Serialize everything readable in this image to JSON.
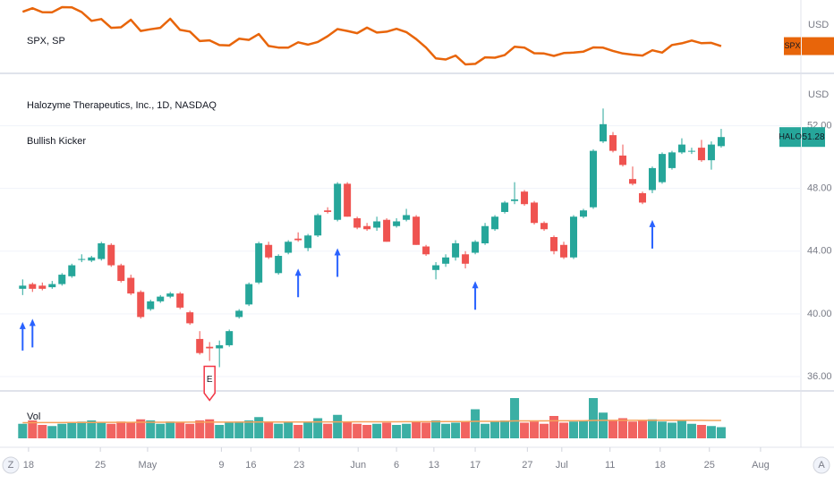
{
  "controls": {
    "left": "Z",
    "right": "A"
  },
  "chart_data": [
    {
      "type": "line",
      "title": "SPX, SP",
      "ticker": "SPX",
      "currency": "USD",
      "color": "#e8650a",
      "xlim": [
        -2.3,
        79.1
      ],
      "ylim": [
        3568,
        4561
      ],
      "values": [
        4397,
        4447,
        4392,
        4391,
        4462,
        4459,
        4394,
        4272,
        4296,
        4175,
        4183,
        4287,
        4132,
        4155,
        4175,
        4300,
        4147,
        4123,
        3991,
        4001,
        3935,
        3930,
        4023,
        4008,
        4088,
        3923,
        3901,
        3901,
        3974,
        3941,
        3979,
        4058,
        4158,
        4132,
        4101,
        4177,
        4109,
        4121,
        4161,
        4116,
        4018,
        3901,
        3750,
        3735,
        3790,
        3667,
        3675,
        3765,
        3760,
        3796,
        3912,
        3901,
        3822,
        3819,
        3785,
        3825,
        3831,
        3845,
        3903,
        3899,
        3855,
        3819,
        3802,
        3790,
        3863,
        3831,
        3937,
        3960,
        3999,
        3962,
        3967,
        3921
      ]
    },
    {
      "type": "candlestick",
      "title": "Halozyme Therapeutics, Inc., 1D, NASDAQ",
      "indicator": "Bullish Kicker",
      "ticker": "HALO",
      "currency": "USD",
      "up_color": "#26a69a",
      "down_color": "#ef5350",
      "grid": true,
      "xlim": [
        -2.3,
        79.1
      ],
      "ylim": [
        35.2,
        55
      ],
      "yticks": [
        {
          "value": 36,
          "label": "36.00"
        },
        {
          "value": 40,
          "label": "40.00"
        },
        {
          "value": 44,
          "label": "44.00"
        },
        {
          "value": 48,
          "label": "48.00"
        },
        {
          "value": 52,
          "label": "52.00"
        }
      ],
      "xticks": [
        {
          "value": 0.6,
          "label": "18"
        },
        {
          "value": 7.9,
          "label": "25"
        },
        {
          "value": 12.7,
          "label": "May"
        },
        {
          "value": 20.2,
          "label": "9"
        },
        {
          "value": 23.2,
          "label": "16"
        },
        {
          "value": 28.1,
          "label": "23"
        },
        {
          "value": 34.1,
          "label": "Jun"
        },
        {
          "value": 38,
          "label": "6"
        },
        {
          "value": 41.8,
          "label": "13"
        },
        {
          "value": 46,
          "label": "17"
        },
        {
          "value": 51.3,
          "label": "27"
        },
        {
          "value": 54.8,
          "label": "Jul"
        },
        {
          "value": 59.7,
          "label": "11"
        },
        {
          "value": 64.8,
          "label": "18"
        },
        {
          "value": 69.8,
          "label": "25"
        },
        {
          "value": 75,
          "label": "Aug"
        }
      ],
      "open": [
        41.6,
        41.9,
        41.8,
        41.7,
        41.9,
        42.4,
        43.5,
        43.4,
        43.5,
        44.4,
        43.1,
        42.3,
        41.4,
        40.3,
        40.8,
        41.1,
        41.3,
        40.1,
        38.4,
        37.9,
        37.8,
        38.0,
        39.8,
        40.6,
        42.0,
        44.4,
        42.6,
        43.9,
        44.8,
        44.2,
        45.0,
        46.6,
        46.0,
        48.3,
        46.1,
        45.6,
        45.5,
        46.0,
        45.6,
        46.0,
        46.2,
        44.3,
        42.8,
        43.2,
        43.6,
        43.8,
        43.9,
        44.5,
        45.4,
        46.5,
        47.2,
        47.8,
        47.1,
        45.8,
        44.9,
        44.4,
        43.6,
        46.2,
        46.8,
        51.0,
        51.4,
        50.1,
        48.6,
        47.7,
        47.9,
        48.4,
        49.3,
        50.3,
        50.4,
        50.6,
        49.8,
        50.7
      ],
      "high": [
        42.2,
        42.0,
        42.0,
        42.1,
        42.6,
        43.2,
        43.8,
        43.7,
        44.6,
        44.5,
        43.2,
        42.5,
        41.5,
        40.9,
        41.2,
        41.4,
        41.4,
        40.2,
        38.9,
        38.2,
        38.3,
        39.0,
        40.3,
        42.0,
        44.6,
        44.6,
        43.8,
        44.7,
        45.2,
        45.1,
        46.4,
        46.8,
        48.4,
        48.4,
        46.2,
        45.8,
        46.2,
        46.1,
        46.1,
        46.7,
        46.3,
        44.4,
        43.3,
        43.8,
        44.7,
        44.0,
        44.7,
        45.8,
        46.3,
        47.2,
        48.4,
        47.9,
        47.2,
        45.9,
        45.0,
        44.6,
        46.3,
        46.7,
        50.5,
        53.1,
        51.6,
        50.8,
        49.4,
        47.8,
        49.4,
        50.3,
        50.4,
        51.2,
        50.6,
        51.1,
        51.0,
        51.8
      ],
      "low": [
        41.2,
        41.4,
        41.5,
        41.6,
        41.8,
        42.3,
        43.3,
        43.3,
        43.4,
        43.0,
        42.0,
        41.2,
        39.7,
        40.2,
        40.7,
        41.0,
        40.3,
        39.3,
        37.4,
        37.0,
        36.6,
        37.9,
        39.7,
        40.5,
        41.9,
        43.5,
        42.5,
        43.8,
        44.6,
        44.0,
        44.9,
        46.4,
        45.9,
        46.2,
        45.4,
        45.3,
        45.3,
        44.6,
        45.5,
        45.9,
        44.4,
        43.7,
        42.2,
        43.0,
        43.4,
        42.9,
        43.8,
        44.4,
        45.3,
        46.4,
        47.0,
        46.9,
        45.7,
        45.3,
        43.8,
        43.5,
        43.5,
        46.1,
        46.7,
        50.9,
        50.3,
        49.4,
        48.2,
        47.0,
        47.7,
        48.3,
        49.2,
        50.2,
        50.2,
        49.7,
        49.2,
        50.6
      ],
      "close": [
        41.8,
        41.6,
        41.6,
        41.9,
        42.5,
        43.1,
        43.5,
        43.6,
        44.5,
        43.1,
        42.1,
        41.3,
        39.8,
        40.8,
        41.1,
        41.3,
        40.4,
        39.4,
        37.5,
        37.8,
        38.0,
        38.9,
        40.2,
        41.9,
        44.5,
        43.6,
        43.7,
        44.6,
        44.7,
        45.0,
        46.3,
        46.5,
        48.3,
        46.2,
        45.5,
        45.4,
        45.9,
        44.6,
        45.9,
        46.3,
        44.4,
        43.8,
        43.1,
        43.6,
        44.5,
        43.2,
        44.6,
        45.6,
        46.2,
        47.1,
        47.3,
        47.0,
        45.8,
        45.4,
        44.0,
        43.6,
        46.2,
        46.6,
        50.4,
        52.1,
        50.4,
        49.5,
        48.3,
        47.1,
        49.3,
        50.2,
        50.3,
        50.8,
        50.4,
        49.8,
        50.8,
        51.28
      ],
      "signals": [
        0,
        1,
        28,
        32,
        46,
        64
      ],
      "signal_color": "#2962ff",
      "earnings": {
        "index": 19,
        "label": "E",
        "color": "#f23645"
      }
    },
    {
      "type": "bar",
      "title": "Vol",
      "xlim": [
        -2.3,
        79.1
      ],
      "ylim": [
        0,
        4
      ],
      "ma_color": "#f6a35b",
      "values": [
        1.3,
        1.6,
        1.2,
        1.1,
        1.3,
        1.4,
        1.5,
        1.6,
        1.4,
        1.3,
        1.5,
        1.4,
        1.7,
        1.6,
        1.3,
        1.5,
        1.4,
        1.3,
        1.6,
        1.7,
        1.2,
        1.4,
        1.5,
        1.6,
        1.9,
        1.4,
        1.3,
        1.5,
        1.2,
        1.4,
        1.8,
        1.3,
        2.1,
        1.5,
        1.3,
        1.2,
        1.3,
        1.4,
        1.2,
        1.3,
        1.5,
        1.4,
        1.6,
        1.3,
        1.4,
        1.5,
        2.6,
        1.3,
        1.5,
        1.6,
        3.6,
        1.4,
        1.5,
        1.3,
        2.0,
        1.4,
        1.5,
        1.6,
        3.6,
        2.3,
        1.6,
        1.8,
        1.5,
        1.6,
        1.7,
        1.5,
        1.4,
        1.6,
        1.3,
        1.2,
        1.1,
        1.0
      ],
      "ma": [
        1.4,
        1.4,
        1.41,
        1.41,
        1.41,
        1.42,
        1.42,
        1.42,
        1.43,
        1.43,
        1.43,
        1.43,
        1.44,
        1.44,
        1.44,
        1.44,
        1.44,
        1.45,
        1.45,
        1.45,
        1.45,
        1.45,
        1.45,
        1.46,
        1.46,
        1.46,
        1.46,
        1.46,
        1.46,
        1.46,
        1.47,
        1.47,
        1.47,
        1.47,
        1.48,
        1.48,
        1.48,
        1.48,
        1.48,
        1.49,
        1.49,
        1.49,
        1.49,
        1.5,
        1.5,
        1.5,
        1.52,
        1.52,
        1.52,
        1.53,
        1.56,
        1.56,
        1.56,
        1.56,
        1.57,
        1.57,
        1.57,
        1.57,
        1.6,
        1.61,
        1.61,
        1.61,
        1.61,
        1.61,
        1.61,
        1.61,
        1.61,
        1.61,
        1.61,
        1.61,
        1.6,
        1.6
      ]
    }
  ]
}
